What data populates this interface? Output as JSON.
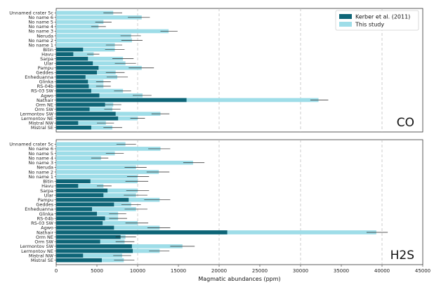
{
  "chart_data": {
    "type": "bar",
    "orientation": "horizontal",
    "xlabel": "Magmatic abundances (ppm)",
    "xlim": [
      0,
      45000
    ],
    "xticks": [
      0,
      5000,
      10000,
      15000,
      20000,
      25000,
      30000,
      35000,
      40000,
      45000
    ],
    "gridlines_x": [
      10000,
      20000,
      30000,
      40000
    ],
    "legend": {
      "placement": "top-right",
      "entries": [
        "Kerber et al. (2011)",
        "This study"
      ]
    },
    "colors": {
      "kerber": "#0e6577",
      "this_study": "#9edde8",
      "grid": "#b8b8b8",
      "error": "#222222"
    },
    "categories": [
      "Unnamed crater 5c",
      "No name 6",
      "No name 5",
      "No name 4",
      "No name 3",
      "Neruda",
      "No name 2",
      "No name 1",
      "Bitin",
      "Havu",
      "Sarpa",
      "Ular",
      "Pampu",
      "Geddes",
      "Enheduanna",
      "Glinka",
      "RS-04b",
      "RS-03 SW",
      "Agwo",
      "Nathair",
      "Orm NE",
      "Orm SW",
      "Lermontov SW",
      "Lermontov NE",
      "Mistral NW",
      "Mistral SE"
    ],
    "panels": [
      {
        "label": "CO",
        "series": [
          {
            "name": "This study",
            "values": [
              7000,
              10500,
              5800,
              5200,
              13800,
              9200,
              9300,
              7200,
              7200,
              4600,
              8200,
              8500,
              10500,
              7300,
              7500,
              5800,
              5800,
              8200,
              10600,
              32200,
              7000,
              6900,
              12800,
              10000,
              6100,
              6900
            ],
            "err_low": [
              5800,
              8800,
              4800,
              4300,
              12800,
              7900,
              8000,
              6100,
              6000,
              3800,
              6900,
              7200,
              8900,
              6100,
              6200,
              4900,
              4900,
              7100,
              9400,
              31200,
              6000,
              5900,
              11700,
              9100,
              5000,
              5800
            ],
            "err_high": [
              8100,
              11500,
              6800,
              6100,
              14900,
              10400,
              10600,
              8100,
              8400,
              5300,
              9500,
              9800,
              12000,
              8400,
              8800,
              6700,
              6700,
              9200,
              11700,
              33400,
              8000,
              7900,
              13900,
              10900,
              7100,
              8100
            ]
          },
          {
            "name": "Kerber et al. (2011)",
            "values": [
              0,
              0,
              0,
              0,
              0,
              0,
              0,
              0,
              3300,
              2100,
              3900,
              4500,
              5200,
              5000,
              3600,
              3900,
              4000,
              4300,
              5300,
              16000,
              6000,
              4100,
              7300,
              7600,
              2700,
              4300
            ]
          }
        ]
      },
      {
        "label": "H2S",
        "series": [
          {
            "name": "This study",
            "values": [
              8500,
              12800,
              7200,
              5500,
              16800,
              9800,
              12600,
              10000,
              10000,
              5800,
              10000,
              9800,
              12700,
              9200,
              9800,
              7600,
              7600,
              10000,
              12700,
              39300,
              8500,
              8400,
              15500,
              12700,
              8100,
              8300
            ],
            "err_low": [
              7400,
              11300,
              6100,
              4300,
              15600,
              8400,
              11100,
              8700,
              8500,
              5000,
              8600,
              8300,
              10800,
              8000,
              8400,
              6500,
              6500,
              8500,
              11200,
              38100,
              7300,
              7300,
              14000,
              11400,
              7000,
              7100
            ],
            "err_high": [
              9800,
              14000,
              8300,
              6400,
              18200,
              11100,
              13900,
              11400,
              11300,
              6800,
              11400,
              11200,
              14000,
              10400,
              11200,
              8600,
              8700,
              11300,
              14000,
              40700,
              9800,
              9600,
              17000,
              13900,
              9200,
              9600
            ]
          },
          {
            "name": "Kerber et al. (2011)",
            "values": [
              0,
              0,
              0,
              0,
              0,
              0,
              0,
              0,
              4200,
              2700,
              6300,
              5800,
              8900,
              7100,
              4400,
              5000,
              6000,
              5700,
              7100,
              21000,
              7900,
              5400,
              9300,
              9400,
              3300,
              5600
            ]
          }
        ]
      }
    ]
  }
}
